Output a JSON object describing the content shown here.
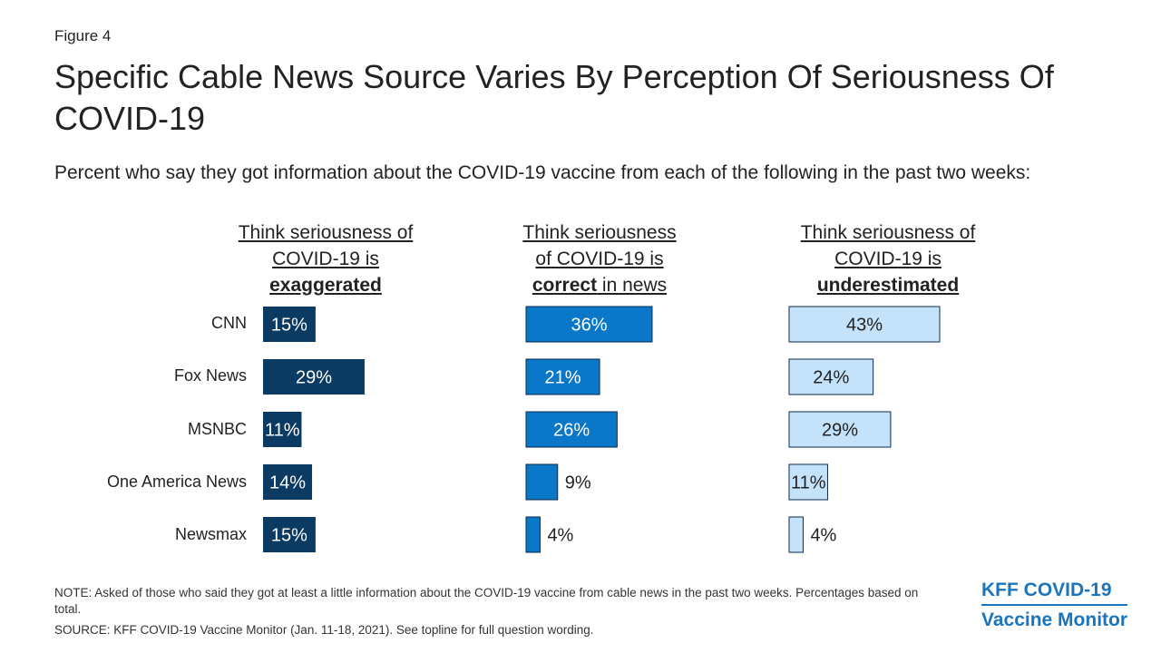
{
  "figure_label": "Figure 4",
  "title": "Specific Cable News Source Varies By Perception Of Seriousness Of COVID-19",
  "subtitle": "Percent who say they got information about the COVID-19 vaccine from each of the following in the past two weeks:",
  "panels": [
    {
      "line1": "Think seriousness of",
      "line2": "COVID-19 is",
      "line3_bold": "exaggerated",
      "line3_rest": ""
    },
    {
      "line1": "Think seriousness",
      "line2": "of COVID-19 is",
      "line3_bold": "correct",
      "line3_rest": " in news"
    },
    {
      "line1": "Think seriousness of",
      "line2": "COVID-19 is",
      "line3_bold": "underestimated",
      "line3_rest": ""
    }
  ],
  "chart_data": {
    "type": "bar",
    "orientation": "horizontal",
    "title": "Specific Cable News Source Varies By Perception Of Seriousness Of COVID-19",
    "categories": [
      "CNN",
      "Fox News",
      "MSNBC",
      "One America News",
      "Newsmax"
    ],
    "series": [
      {
        "name": "Think seriousness of COVID-19 is exaggerated",
        "values": [
          15,
          29,
          11,
          14,
          15
        ],
        "labels": [
          "15%",
          "29%",
          "11%",
          "14%",
          "15%"
        ],
        "color": "#0b3a63"
      },
      {
        "name": "Think seriousness of COVID-19 is correct in news",
        "values": [
          36,
          21,
          26,
          9,
          4
        ],
        "labels": [
          "36%",
          "21%",
          "26%",
          "9%",
          "4%"
        ],
        "color": "#0b77c9"
      },
      {
        "name": "Think seriousness of COVID-19 is underestimated",
        "values": [
          43,
          24,
          29,
          11,
          4
        ],
        "labels": [
          "43%",
          "24%",
          "29%",
          "11%",
          "4%"
        ],
        "color": "#c4e3fb"
      }
    ],
    "unit": "%"
  },
  "note": "NOTE: Asked of those who said they got at least a little information about the COVID-19 vaccine from cable news in the past two weeks. Percentages based on total.",
  "source": "SOURCE: KFF COVID-19 Vaccine Monitor (Jan. 11-18, 2021). See topline for full question wording.",
  "brand": {
    "line1": "KFF COVID-19",
    "line2": "Vaccine Monitor"
  }
}
